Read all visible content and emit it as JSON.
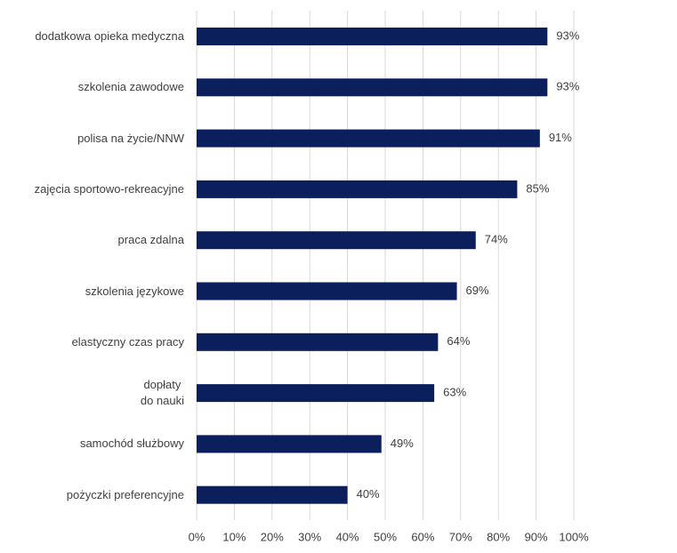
{
  "chart_data": {
    "type": "hbar",
    "categories": [
      "dodatkowa opieka medyczna",
      "szkolenia zawodowe",
      "polisa na życie/NNW",
      "zajęcia sportowo-rekreacyjne",
      "praca zdalna",
      "szkolenia językowe",
      "elastyczny czas pracy",
      "dopłaty\ndo nauki",
      "samochód służbowy",
      "pożyczki preferencyjne"
    ],
    "values": [
      93,
      93,
      91,
      85,
      74,
      69,
      64,
      63,
      49,
      40
    ],
    "value_labels": [
      "93%",
      "93%",
      "91%",
      "85%",
      "74%",
      "69%",
      "64%",
      "63%",
      "49%",
      "40%"
    ],
    "color": "#0b1f5c",
    "xlim": [
      0,
      100
    ],
    "xticks": [
      {
        "value": 0,
        "label": "0%"
      },
      {
        "value": 10,
        "label": "10%"
      },
      {
        "value": 20,
        "label": "20%"
      },
      {
        "value": 30,
        "label": "30%"
      },
      {
        "value": 40,
        "label": "40%"
      },
      {
        "value": 50,
        "label": "50%"
      },
      {
        "value": 60,
        "label": "60%"
      },
      {
        "value": 70,
        "label": "70%"
      },
      {
        "value": 80,
        "label": "80%"
      },
      {
        "value": 90,
        "label": "90%"
      },
      {
        "value": 100,
        "label": "100%"
      }
    ],
    "grid": true
  }
}
